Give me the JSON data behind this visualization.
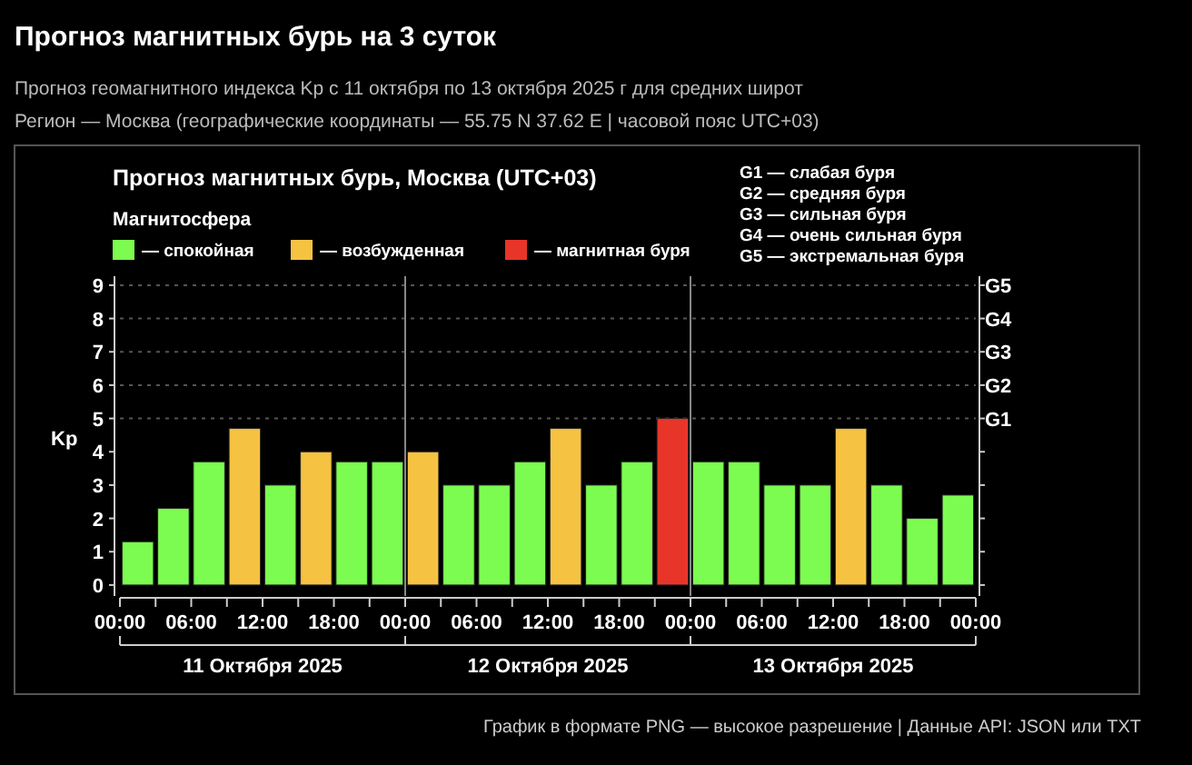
{
  "chart_data": {
    "type": "bar",
    "stacked": true,
    "title": "Прогноз магнитных бурь на 3 суток",
    "subtitle": "Прогноз геомагнитного индекса Kp с 11 октября по 13 октября 2025 г для средних широт",
    "ylabel": "Kp",
    "legend_title": "Магнитосфера",
    "legend": "top left",
    "x": [
      "2025-10-11T01:30",
      "2025-10-11T04:30",
      "2025-10-11T07:30",
      "2025-10-11T10:30",
      "2025-10-11T13:30",
      "2025-10-11T16:30",
      "2025-10-11T19:30",
      "2025-10-11T22:30",
      "2025-10-12T01:30",
      "2025-10-12T04:30",
      "2025-10-12T07:30",
      "2025-10-12T10:30",
      "2025-10-12T13:30",
      "2025-10-12T16:30",
      "2025-10-12T19:30",
      "2025-10-12T22:30",
      "2025-10-13T01:30",
      "2025-10-13T04:30",
      "2025-10-13T07:30",
      "2025-10-13T10:30",
      "2025-10-13T13:30",
      "2025-10-13T16:30",
      "2025-10-13T19:30",
      "2025-10-13T22:30"
    ],
    "xlim": [
      "2025-10-11T00:00",
      "2025-10-14T00:00"
    ],
    "xticks": [
      {
        "value": "2025-10-11T00:00",
        "label": "00:00"
      },
      {
        "value": "2025-10-11T03:00",
        "label": null
      },
      {
        "value": "2025-10-11T06:00",
        "label": "06:00"
      },
      {
        "value": "2025-10-11T09:00",
        "label": null
      },
      {
        "value": "2025-10-11T12:00",
        "label": "12:00"
      },
      {
        "value": "2025-10-11T15:00",
        "label": null
      },
      {
        "value": "2025-10-11T18:00",
        "label": "18:00"
      },
      {
        "value": "2025-10-11T21:00",
        "label": null
      },
      {
        "value": "2025-10-12T00:00",
        "label": "00:00"
      },
      {
        "value": "2025-10-12T03:00",
        "label": null
      },
      {
        "value": "2025-10-12T06:00",
        "label": "06:00"
      },
      {
        "value": "2025-10-12T09:00",
        "label": null
      },
      {
        "value": "2025-10-12T12:00",
        "label": "12:00"
      },
      {
        "value": "2025-10-12T15:00",
        "label": null
      },
      {
        "value": "2025-10-12T18:00",
        "label": "18:00"
      },
      {
        "value": "2025-10-12T21:00",
        "label": null
      },
      {
        "value": "2025-10-13T00:00",
        "label": "00:00"
      },
      {
        "value": "2025-10-13T03:00",
        "label": null
      },
      {
        "value": "2025-10-13T06:00",
        "label": "06:00"
      },
      {
        "value": "2025-10-13T09:00",
        "label": null
      },
      {
        "value": "2025-10-13T12:00",
        "label": "12:00"
      },
      {
        "value": "2025-10-13T15:00",
        "label": null
      },
      {
        "value": "2025-10-13T18:00",
        "label": "18:00"
      },
      {
        "value": "2025-10-13T21:00",
        "label": null
      },
      {
        "value": "2025-10-14T00:00",
        "label": "00:00"
      }
    ],
    "ylim": [
      -0.33,
      9.27
    ],
    "yticks": [
      0,
      1,
      2,
      3,
      4,
      5,
      6,
      7,
      8,
      9
    ],
    "ref_lines": [
      {
        "axis": "x",
        "value": "2025-10-12T00:00",
        "color": "#888888",
        "line_style": "solid"
      },
      {
        "axis": "x",
        "value": "2025-10-13T00:00",
        "color": "#888888",
        "line_style": "solid"
      },
      {
        "axis": "y",
        "value": 5,
        "label": "G1",
        "color": "#555555",
        "line_style": "dotted"
      },
      {
        "axis": "y",
        "value": 6,
        "label": "G2",
        "color": "#555555",
        "line_style": "dotted"
      },
      {
        "axis": "y",
        "value": 7,
        "label": "G3",
        "color": "#555555",
        "line_style": "dotted"
      },
      {
        "axis": "y",
        "value": 8,
        "label": "G4",
        "color": "#555555",
        "line_style": "dotted"
      },
      {
        "axis": "y",
        "value": 9,
        "label": "G5",
        "color": "#555555",
        "line_style": "dotted"
      }
    ],
    "series": [
      {
        "name": "— спокойная",
        "color": "#7cfc50",
        "values": [
          1.3,
          2.3,
          3.7,
          null,
          3,
          null,
          3.7,
          3.7,
          null,
          3,
          3,
          3.7,
          null,
          3,
          3.7,
          null,
          3.7,
          3.7,
          3,
          3,
          null,
          3,
          2,
          2.7
        ]
      },
      {
        "name": "— возбужденная",
        "color": "#f5c242",
        "values": [
          null,
          null,
          null,
          4.7,
          null,
          4,
          null,
          null,
          4,
          null,
          null,
          null,
          4.7,
          null,
          null,
          null,
          null,
          null,
          null,
          null,
          4.7,
          null,
          null,
          null
        ]
      },
      {
        "name": "— магнитная буря",
        "color": "#e8352a",
        "values": [
          null,
          null,
          null,
          null,
          null,
          null,
          null,
          null,
          null,
          null,
          null,
          null,
          null,
          null,
          null,
          5,
          null,
          null,
          null,
          null,
          null,
          null,
          null,
          null
        ]
      }
    ],
    "annotations": [
      "Регион — Москва (географические координаты — 55.75 N 37.62 E | часовой пояс UTC+03)",
      "Прогноз магнитных бурь, Москва (UTC+03)",
      "G1 — слабая буря",
      "G2 — средняя буря",
      "G3 — сильная буря",
      "G4 — очень сильная буря",
      "G5 — экстремальная буря",
      "График в формате PNG — высокое разрешение | Данные API: JSON или TXT",
      "11 Октября 2025",
      "12 Октября 2025",
      "13 Октября 2025"
    ]
  }
}
